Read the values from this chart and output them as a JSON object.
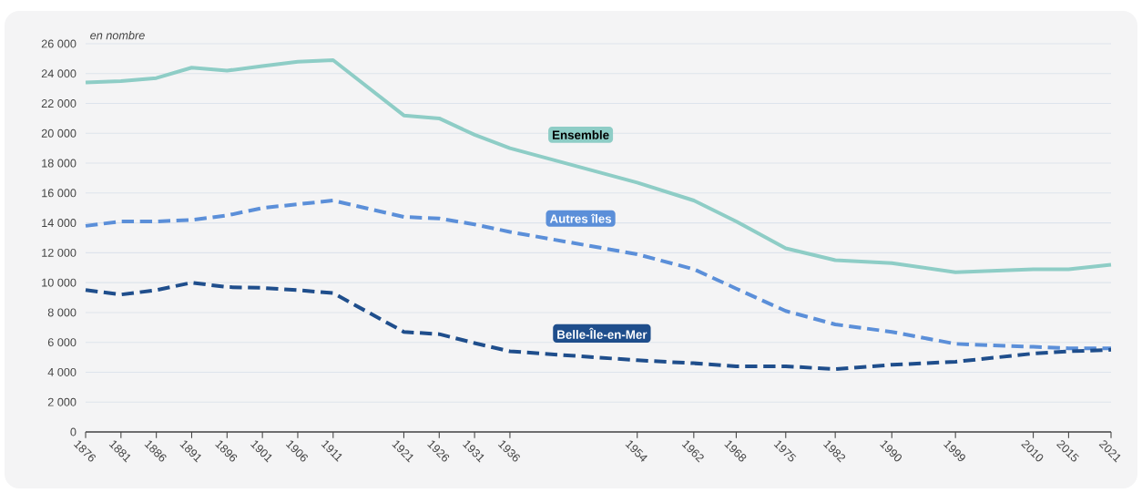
{
  "chart_data": {
    "type": "line",
    "ylabel": "en nombre",
    "x": [
      1876,
      1881,
      1886,
      1891,
      1896,
      1901,
      1906,
      1911,
      1921,
      1926,
      1931,
      1936,
      1954,
      1962,
      1968,
      1975,
      1982,
      1990,
      1999,
      2010,
      2015,
      2021
    ],
    "series": [
      {
        "name": "Ensemble",
        "color": "#8ecdc6",
        "line_style": "solid",
        "values": [
          23400,
          23500,
          23700,
          24400,
          24200,
          24500,
          24800,
          24900,
          21200,
          21000,
          19900,
          19000,
          16700,
          15500,
          14100,
          12300,
          11500,
          11300,
          10700,
          10900,
          10900,
          11200
        ]
      },
      {
        "name": "Autres îles",
        "color": "#5b8fd9",
        "line_style": "dashed",
        "values": [
          13800,
          14100,
          14100,
          14200,
          14500,
          15000,
          15250,
          15500,
          14400,
          14300,
          13900,
          13400,
          11900,
          10900,
          9600,
          8100,
          7200,
          6700,
          5900,
          5700,
          5600,
          5600
        ]
      },
      {
        "name": "Belle-Île-en-Mer",
        "color": "#1f4e8c",
        "line_style": "dashed",
        "values": [
          9500,
          9200,
          9500,
          10000,
          9700,
          9650,
          9500,
          9300,
          6700,
          6550,
          5950,
          5400,
          4800,
          4600,
          4400,
          4400,
          4200,
          4500,
          4700,
          5250,
          5400,
          5500
        ]
      }
    ],
    "xlim": [
      1876,
      2021
    ],
    "xticks": [
      1876,
      1881,
      1886,
      1891,
      1896,
      1901,
      1906,
      1911,
      1921,
      1926,
      1931,
      1936,
      1954,
      1962,
      1968,
      1975,
      1982,
      1990,
      1999,
      2010,
      2015,
      2021
    ],
    "ylim": [
      0,
      26000
    ],
    "yticks": [
      0,
      {
        "value": 2000,
        "label": "2 000"
      },
      {
        "value": 4000,
        "label": "4 000"
      },
      {
        "value": 6000,
        "label": "6 000"
      },
      {
        "value": 8000,
        "label": "8 000"
      },
      {
        "value": 10000,
        "label": "10 000"
      },
      {
        "value": 12000,
        "label": "12 000"
      },
      {
        "value": 14000,
        "label": "14 000"
      },
      {
        "value": 16000,
        "label": "16 000"
      },
      {
        "value": 18000,
        "label": "18 000"
      },
      {
        "value": 20000,
        "label": "20 000"
      },
      {
        "value": 22000,
        "label": "22 000"
      },
      {
        "value": 24000,
        "label": "24 000"
      },
      {
        "value": 26000,
        "label": "26 000"
      }
    ],
    "grid": "y"
  }
}
